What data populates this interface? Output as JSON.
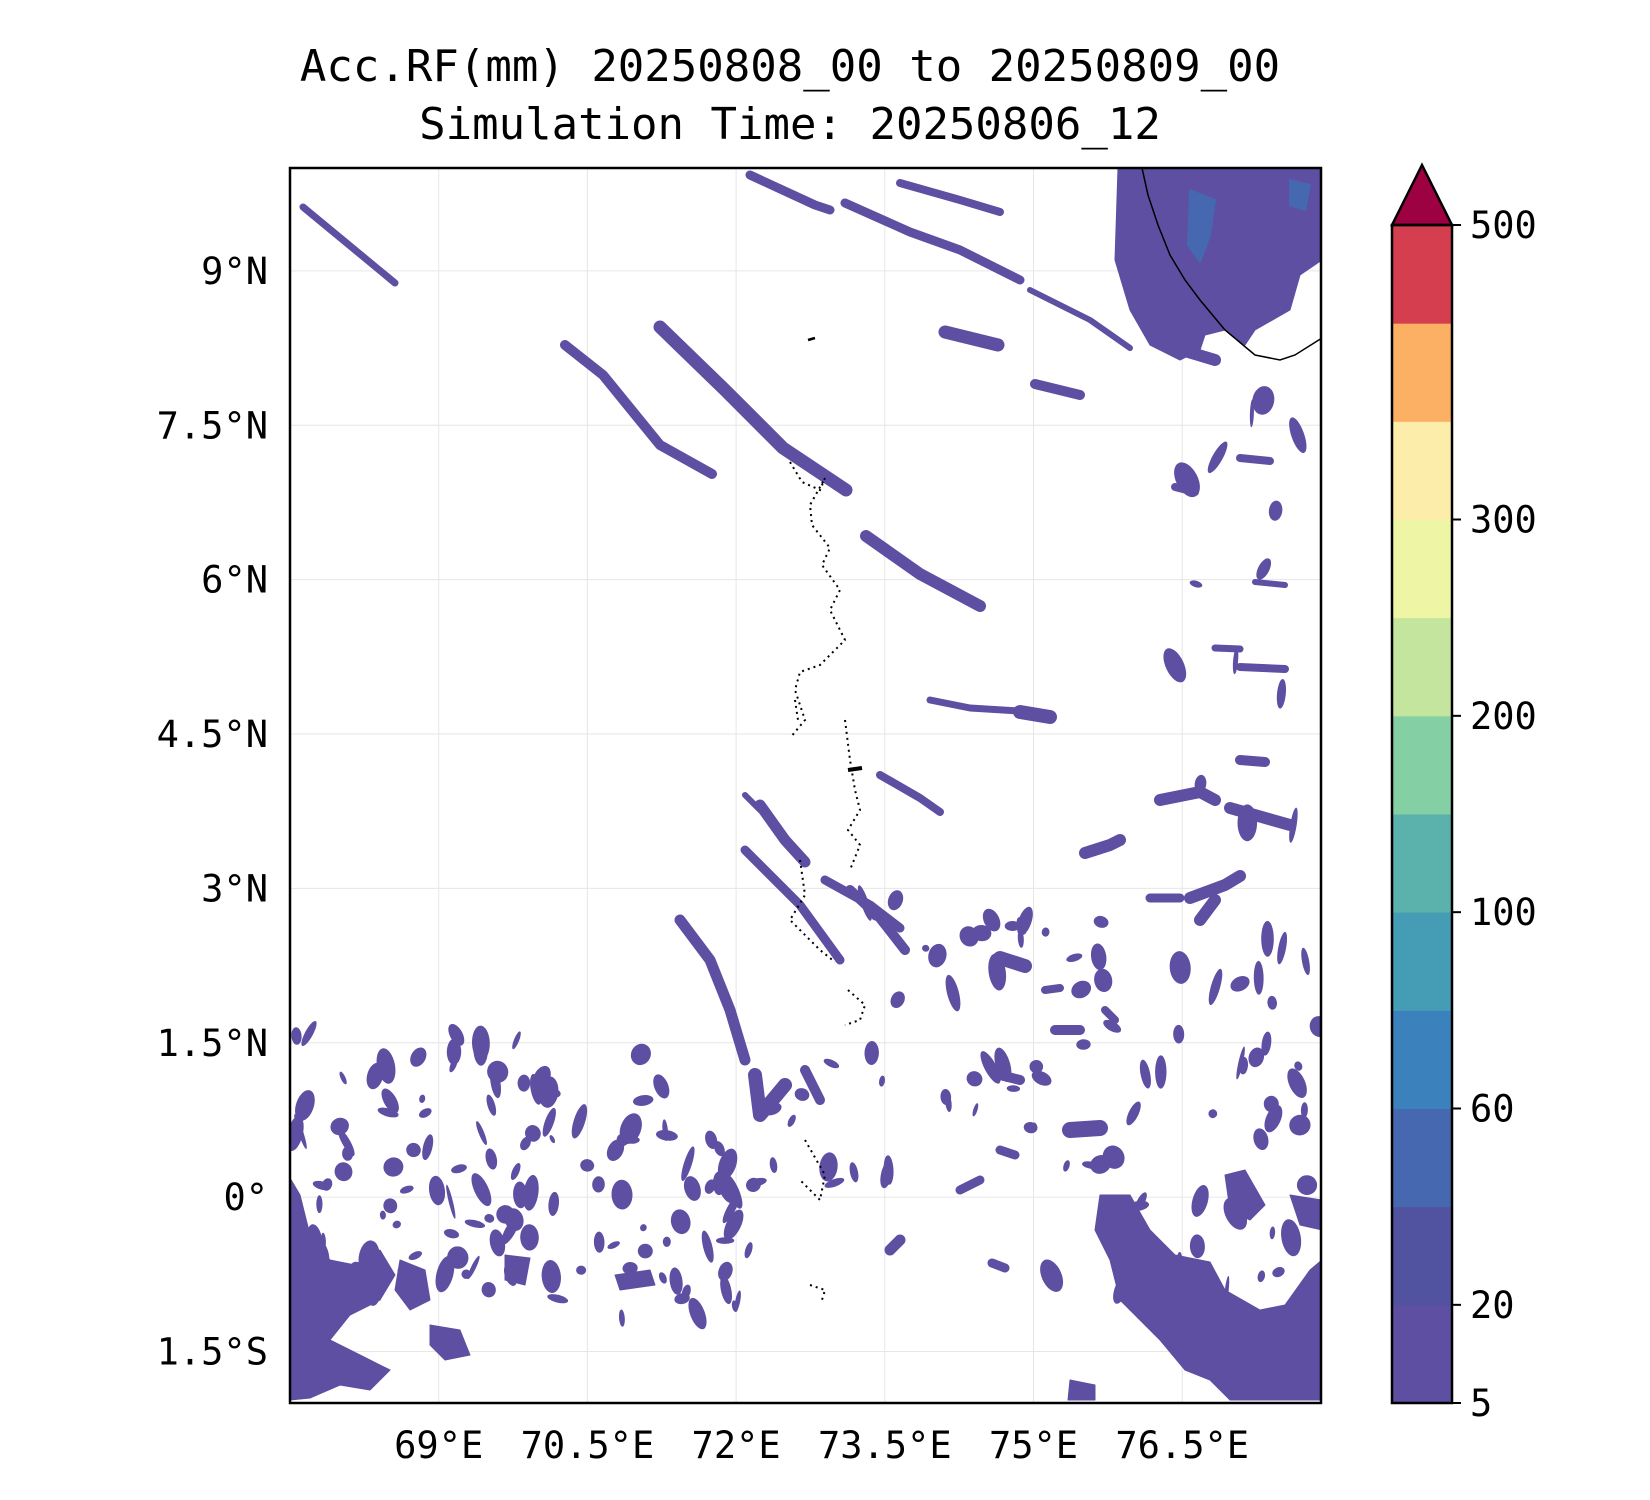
{
  "title": {
    "line1": "Acc.RF(mm) 20250808_00 to 20250809_00",
    "line2": "Simulation Time: 20250806_12"
  },
  "map": {
    "lon_range": [
      67.5,
      77.9
    ],
    "lat_range": [
      -2.0,
      10.0
    ],
    "lon_ticks": [
      69,
      70.5,
      72,
      73.5,
      75,
      76.5
    ],
    "lon_tick_labels": [
      "69°E",
      "70.5°E",
      "72°E",
      "73.5°E",
      "75°E",
      "76.5°E"
    ],
    "lat_ticks": [
      9,
      7.5,
      6,
      4.5,
      3,
      1.5,
      0,
      -1.5
    ],
    "lat_tick_labels": [
      "9°N",
      "7.5°N",
      "6°N",
      "4.5°N",
      "3°N",
      "1.5°N",
      "0°",
      "1.5°S"
    ],
    "grid": true,
    "fill_color": "#5e4fa2"
  },
  "colorbar": {
    "extend": "max",
    "tick_labels": [
      "5",
      "20",
      "60",
      "100",
      "200",
      "300",
      "500"
    ],
    "colors": [
      "#5e4fa2",
      "#5153a0",
      "#4568b0",
      "#3b82bc",
      "#449cb5",
      "#5bb1ab",
      "#84cfa3",
      "#c4e59d",
      "#eef6a5",
      "#fdedaa",
      "#fbb064",
      "#d53e4f"
    ],
    "extend_color": "#9e0142"
  }
}
